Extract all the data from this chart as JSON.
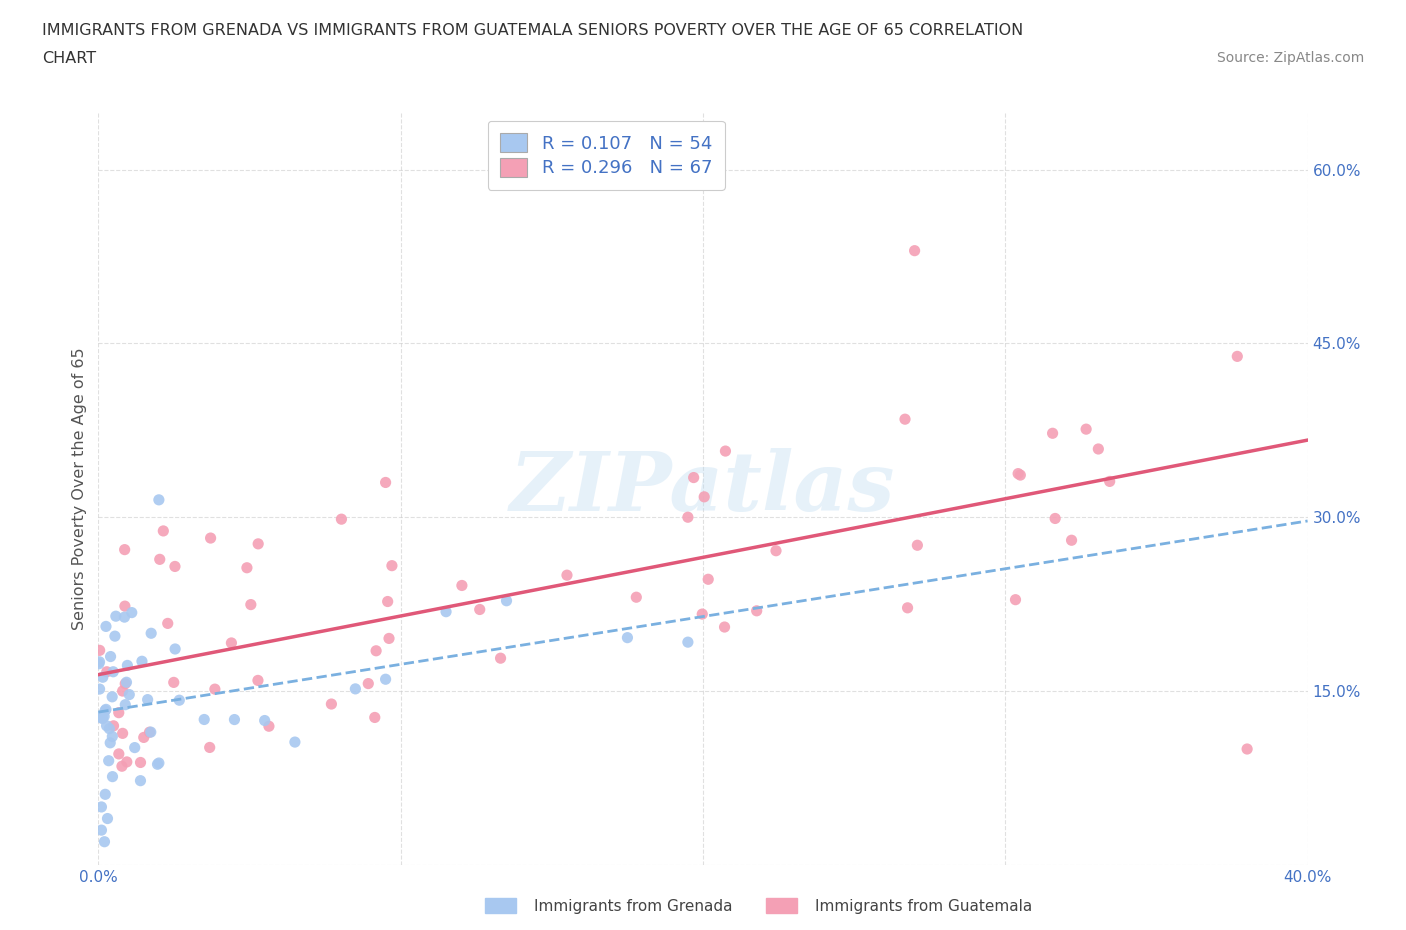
{
  "title_line1": "IMMIGRANTS FROM GRENADA VS IMMIGRANTS FROM GUATEMALA SENIORS POVERTY OVER THE AGE OF 65 CORRELATION",
  "title_line2": "CHART",
  "source": "Source: ZipAtlas.com",
  "ylabel": "Seniors Poverty Over the Age of 65",
  "xlim": [
    0.0,
    0.4
  ],
  "ylim": [
    0.0,
    0.65
  ],
  "xticks": [
    0.0,
    0.1,
    0.2,
    0.3,
    0.4
  ],
  "xticklabels": [
    "0.0%",
    "",
    "",
    "",
    "40.0%"
  ],
  "yticks": [
    0.0,
    0.15,
    0.3,
    0.45,
    0.6
  ],
  "yticklabels_right": [
    "",
    "15.0%",
    "30.0%",
    "45.0%",
    "60.0%"
  ],
  "grenada_color": "#a8c8f0",
  "grenada_line_color": "#7ab0e0",
  "guatemala_color": "#f4a0b5",
  "guatemala_line_color": "#e05878",
  "grenada_R": 0.107,
  "grenada_N": 54,
  "guatemala_R": 0.296,
  "guatemala_N": 67,
  "legend_label_grenada": "Immigrants from Grenada",
  "legend_label_guatemala": "Immigrants from Guatemala",
  "watermark_text": "ZIPatlas",
  "background_color": "#ffffff",
  "grid_color": "#cccccc",
  "tick_color": "#4472c4",
  "title_color": "#333333",
  "source_color": "#888888"
}
